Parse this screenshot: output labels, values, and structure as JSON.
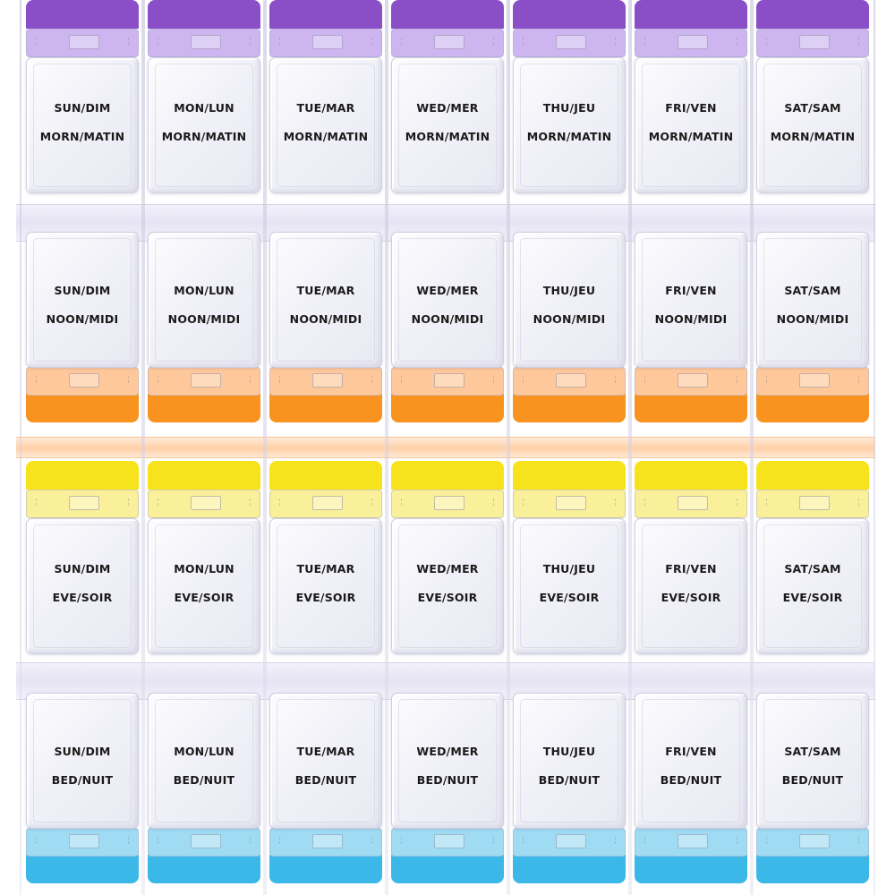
{
  "days": [
    "SUN/DIM",
    "MON/LUN",
    "TUE/MAR",
    "WED/MER",
    "THU/JEU",
    "FRI/VEN",
    "SAT/SAM"
  ],
  "rows": [
    {
      "time": "MORN/MATIN",
      "tab_color": "#8a4fc7",
      "hinge_color": "#cdb6ef"
    },
    {
      "time": "NOON/MIDI",
      "tab_color": "#f7931e",
      "hinge_color": "#ffc89a"
    },
    {
      "time": "EVE/SOIR",
      "tab_color": "#f7e31c",
      "hinge_color": "#fbf09a"
    },
    {
      "time": "BED/NUIT",
      "tab_color": "#3bb8e8",
      "hinge_color": "#9fdcf3"
    }
  ]
}
